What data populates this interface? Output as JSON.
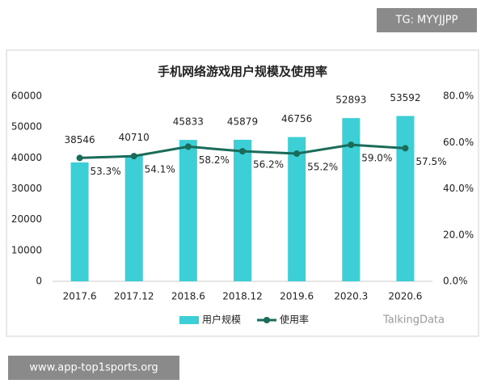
{
  "chart_data": {
    "type": "combo",
    "title": "手机网络游戏用户规模及使用率",
    "categories": [
      "2017.6",
      "2017.12",
      "2018.6",
      "2018.12",
      "2019.6",
      "2020.3",
      "2020.6"
    ],
    "series": [
      {
        "name": "用户规模",
        "type": "bar",
        "color": "#3ccfd6",
        "values": [
          38546,
          40710,
          45833,
          45879,
          46756,
          52893,
          53592
        ]
      },
      {
        "name": "使用率",
        "type": "line",
        "axis": "y2",
        "color": "#1a6b5a",
        "values": [
          53.3,
          54.1,
          58.2,
          56.2,
          55.2,
          59.0,
          57.5
        ],
        "value_labels": [
          "53.3%",
          "54.1%",
          "58.2%",
          "56.2%",
          "55.2%",
          "59.0%",
          "57.5%"
        ]
      }
    ],
    "ylim": [
      0,
      60000
    ],
    "yticks": [
      0,
      10000,
      20000,
      30000,
      40000,
      50000,
      60000
    ],
    "y2lim": [
      0,
      80
    ],
    "y2ticks": [
      {
        "value": 0,
        "label": "0.0%"
      },
      {
        "value": 20,
        "label": "20.0%"
      },
      {
        "value": 40,
        "label": "40.0%"
      },
      {
        "value": 60,
        "label": "60.0%"
      },
      {
        "value": 80,
        "label": "80.0%"
      }
    ],
    "grid": false,
    "legend": "bottom",
    "source": "TalkingData"
  },
  "overlays": {
    "top_tag": "TG: MYYJJPP",
    "bottom_tag": "www.app-top1sports.org"
  }
}
